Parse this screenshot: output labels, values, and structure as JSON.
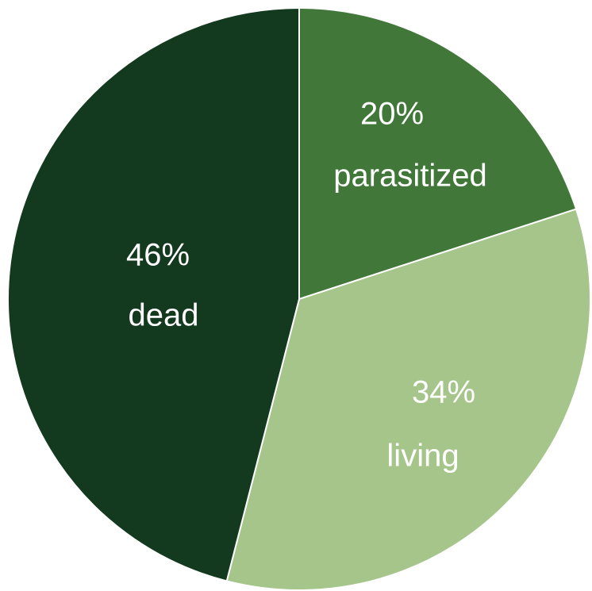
{
  "chart_data": {
    "type": "pie",
    "start_angle_deg": 0,
    "direction": "clockwise",
    "slices": [
      {
        "name": "parasitized",
        "percent_label": "20%",
        "value": 20,
        "color": "#41783a",
        "label_color": "#ffffff"
      },
      {
        "name": "living",
        "percent_label": "34%",
        "value": 34,
        "color": "#a5c58b",
        "label_color": "#ffffff"
      },
      {
        "name": "dead",
        "percent_label": "46%",
        "value": 46,
        "color": "#133a1e",
        "label_color": "#ffffff"
      }
    ]
  }
}
